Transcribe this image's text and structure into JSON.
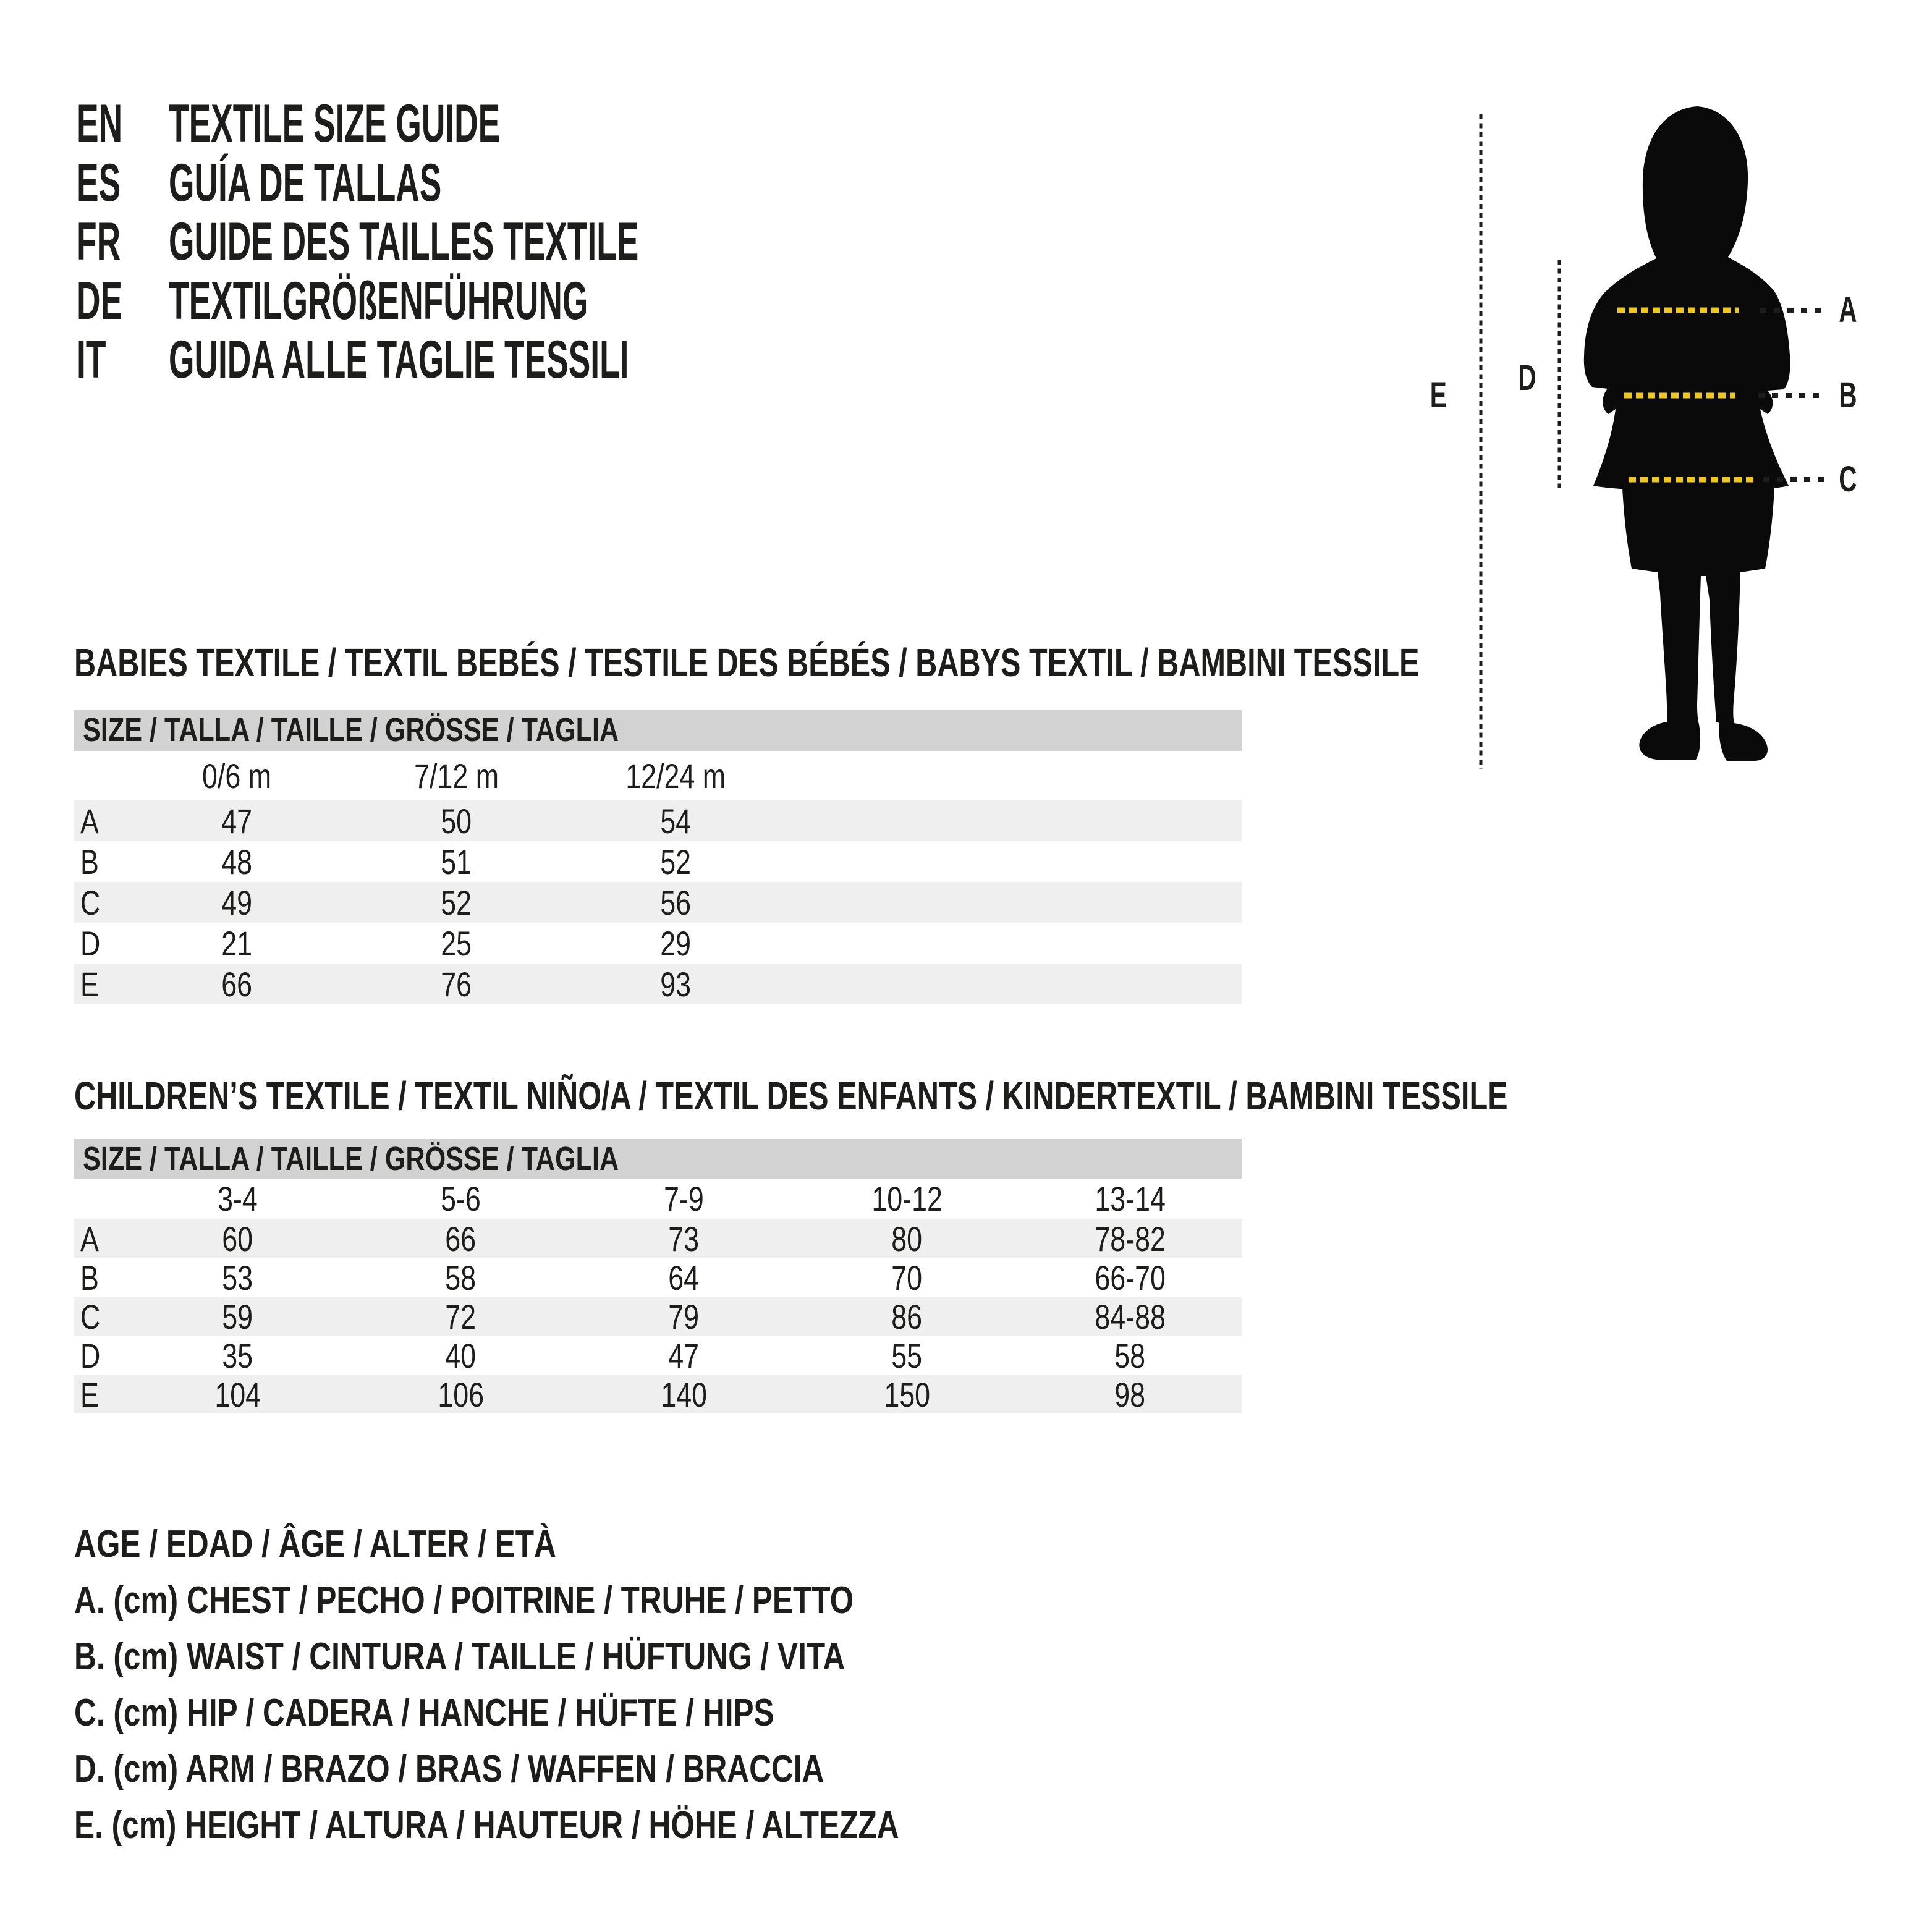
{
  "languages": [
    {
      "code": "EN",
      "title": "TEXTILE SIZE GUIDE"
    },
    {
      "code": "ES",
      "title": "GUÍA DE TALLAS"
    },
    {
      "code": "FR",
      "title": "GUIDE DES TAILLES TEXTILE"
    },
    {
      "code": "DE",
      "title": "TEXTILGRÖßENFÜHRUNG"
    },
    {
      "code": "IT",
      "title": "GUIDA ALLE TAGLIE TESSILI"
    }
  ],
  "figure": {
    "labels": {
      "a": "A",
      "b": "B",
      "c": "C",
      "d": "D",
      "e": "E"
    }
  },
  "babies_table": {
    "section_title": "BABIES TEXTILE / TEXTIL BEBÉS / TESTILE DES BÉBÉS / BABYS TEXTIL / BAMBINI TESSILE",
    "header": "SIZE / TALLA / TAILLE / GRÖSSE / TAGLIA",
    "columns": [
      "0/6 m",
      "7/12 m",
      "12/24 m"
    ],
    "rows": [
      {
        "label": "A",
        "values": [
          "47",
          "50",
          "54"
        ]
      },
      {
        "label": "B",
        "values": [
          "48",
          "51",
          "52"
        ]
      },
      {
        "label": "C",
        "values": [
          "49",
          "52",
          "56"
        ]
      },
      {
        "label": "D",
        "values": [
          "21",
          "25",
          "29"
        ]
      },
      {
        "label": "E",
        "values": [
          "66",
          "76",
          "93"
        ]
      }
    ]
  },
  "children_table": {
    "section_title": "CHILDREN’S TEXTILE / TEXTIL NIÑO/A / TEXTIL DES ENFANTS / KINDERTEXTIL / BAMBINI TESSILE",
    "header": "SIZE / TALLA / TAILLE / GRÖSSE / TAGLIA",
    "columns": [
      "3-4",
      "5-6",
      "7-9",
      "10-12",
      "13-14"
    ],
    "rows": [
      {
        "label": "A",
        "values": [
          "60",
          "66",
          "73",
          "80",
          "78-82"
        ]
      },
      {
        "label": "B",
        "values": [
          "53",
          "58",
          "64",
          "70",
          "66-70"
        ]
      },
      {
        "label": "C",
        "values": [
          "59",
          "72",
          "79",
          "86",
          "84-88"
        ]
      },
      {
        "label": "D",
        "values": [
          "35",
          "40",
          "47",
          "55",
          "58"
        ]
      },
      {
        "label": "E",
        "values": [
          "104",
          "106",
          "140",
          "150",
          "98"
        ]
      }
    ]
  },
  "legend": [
    "AGE / EDAD / ÂGE / ALTER / ETÀ",
    "A. (cm) CHEST / PECHO / POITRINE / TRUHE / PETTO",
    "B. (cm) WAIST / CINTURA / TAILLE / HÜFTUNG / VITA",
    "C. (cm) HIP / CADERA / HANCHE / HÜFTE / HIPS",
    "D. (cm) ARM / BRAZO / BRAS / WAFFEN / BRACCIA",
    "E. (cm) HEIGHT / ALTURA / HAUTEUR / HÖHE / ALTEZZA"
  ],
  "colors": {
    "text": "#1d1d1b",
    "header_bar": "#d2d2d2",
    "row_stripe": "#efefef",
    "measure_yellow": "#edc724",
    "silhouette": "#0a0a0a"
  }
}
